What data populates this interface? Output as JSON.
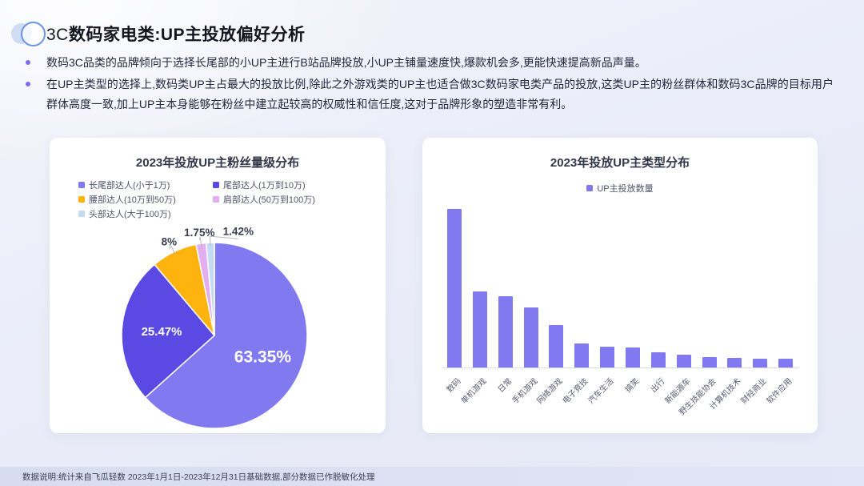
{
  "header": {
    "title_prefix": "3C",
    "title_main": "数码家电类:UP主投放偏好分析"
  },
  "bullets": [
    "数码3C品类的品牌倾向于选择长尾部的小UP主进行B站品牌投放,小UP主铺量速度快,爆款机会多,更能快速提高新品声量。",
    "在UP主类型的选择上,数码类UP主占最大的投放比例,除此之外游戏类的UP主也适合做3C数码家电类产品的投放,这类UP主的粉丝群体和数码3C品牌的目标用户群体高度一致,加上UP主本身能够在粉丝中建立起较高的权威性和信任度,这对于品牌形象的塑造非常有利。"
  ],
  "footer": {
    "note": "数据说明:统计来自飞瓜轻数 2023年1月1日-2023年12月31日基础数据,部分数据已作脱敏化处理"
  },
  "colors": {
    "accent_purple": "#8179F0",
    "deep_violet": "#5A49E3",
    "amber": "#FFB30F",
    "orchid": "#E2AEF0",
    "light_blue": "#C4D9F2",
    "footer_band": "#DCDFF2"
  },
  "chart_data": [
    {
      "type": "pie",
      "title": "2023年投放UP主粉丝量级分布",
      "labels": [
        "长尾部达人(小于1万)",
        "尾部达人(1万到10万)",
        "腰部达人(10万到50万)",
        "肩部达人(50万到100万)",
        "头部达人(大于100万)"
      ],
      "values": [
        63.35,
        25.47,
        8,
        1.75,
        1.42
      ],
      "display_labels": [
        "63.35%",
        "25.47%",
        "8%",
        "1.75%",
        "1.42%"
      ],
      "colors": [
        "#8179F0",
        "#5A49E3",
        "#FFB30F",
        "#E2AEF0",
        "#C4D9F2"
      ],
      "legend_position": "top",
      "start_angle": "12-oclock-clockwise"
    },
    {
      "type": "bar",
      "title": "2023年投放UP主类型分布",
      "legend": [
        "UP主投放数量"
      ],
      "categories": [
        "数码",
        "单机游戏",
        "日常",
        "手机游戏",
        "网络游戏",
        "电子竞技",
        "汽车生活",
        "搞笑",
        "出行",
        "新能源车",
        "野生技能协会",
        "计算机技术",
        "财经商业",
        "软件应用"
      ],
      "values": [
        100,
        48,
        45,
        38,
        27,
        15,
        13,
        12.5,
        9.5,
        8,
        6.5,
        6,
        5.5,
        5.5
      ],
      "value_scale": "relative-estimate (no numeric axis shown)",
      "bar_color": "#8179F0",
      "xlabel_rotation": -45,
      "value_axis": "hidden",
      "legend_position": "top-center",
      "grid": false
    }
  ]
}
